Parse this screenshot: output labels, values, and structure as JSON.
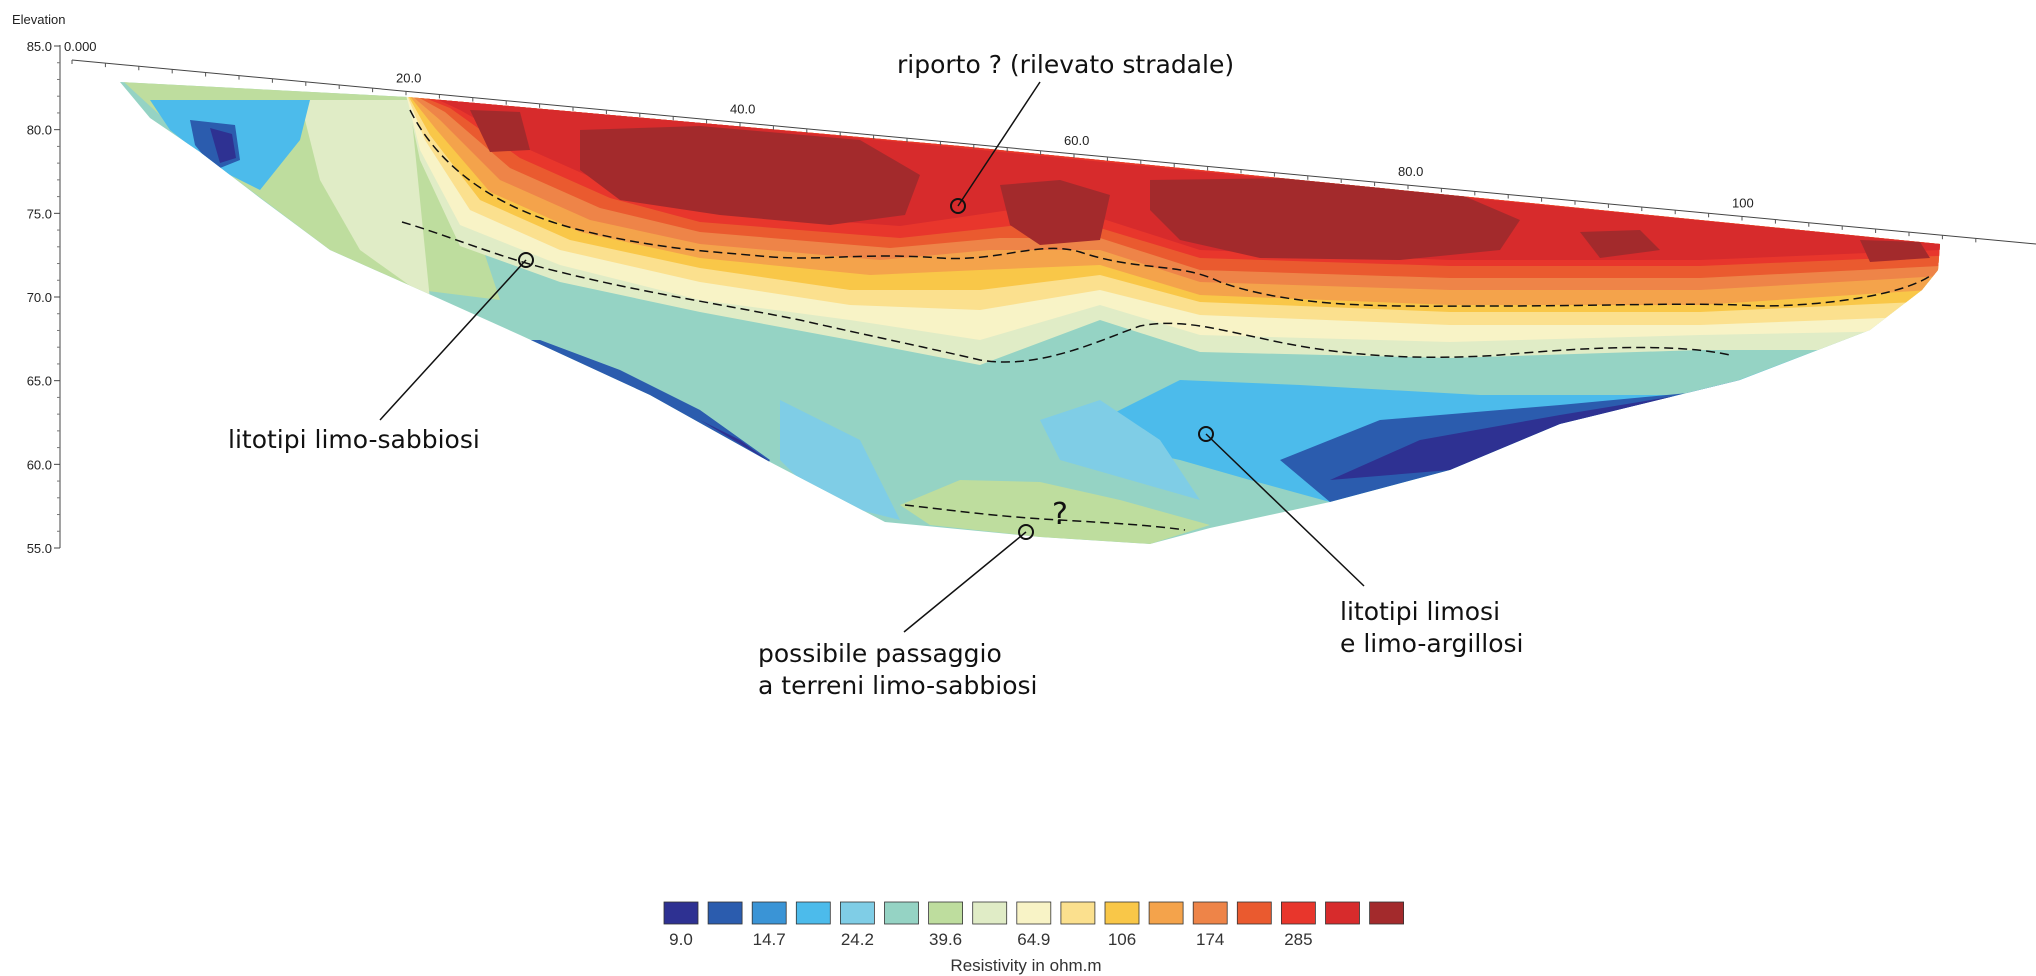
{
  "chart_data": {
    "type": "heatmap",
    "y_axis_label": "Elevation",
    "y_ticks": [
      "85.0",
      "80.0",
      "75.0",
      "70.0",
      "65.0",
      "60.0",
      "55.0"
    ],
    "y_range": [
      55,
      85
    ],
    "x_ticks": [
      "0.000",
      "20.0",
      "40.0",
      "60.0",
      "80.0",
      "100"
    ],
    "annotations": {
      "fill": "riporto ? (rilevato stradale)",
      "sandy_silt": "litotipi limo-sabbiosi",
      "transition_l1": "possibile passaggio",
      "transition_l2": "a terreni limo-sabbiosi",
      "question_mark": "?",
      "silty_l1": "litotipi limosi",
      "silty_l2": "e limo-argillosi"
    },
    "legend": {
      "title": "Resistivity in ohm.m",
      "colors": [
        "#2e3192",
        "#2b5cae",
        "#3a94d6",
        "#4cbbeb",
        "#7fcde6",
        "#95d3c4",
        "#bedd9e",
        "#e0ecc6",
        "#f8f3c6",
        "#fbe08e",
        "#f9c748",
        "#f4a34b",
        "#ee8448",
        "#ea5a2f",
        "#e8362c",
        "#d72b2c",
        "#a32a2c"
      ],
      "labels": [
        "9.0",
        "14.7",
        "24.2",
        "39.6",
        "64.9",
        "106",
        "174",
        "285"
      ]
    }
  }
}
